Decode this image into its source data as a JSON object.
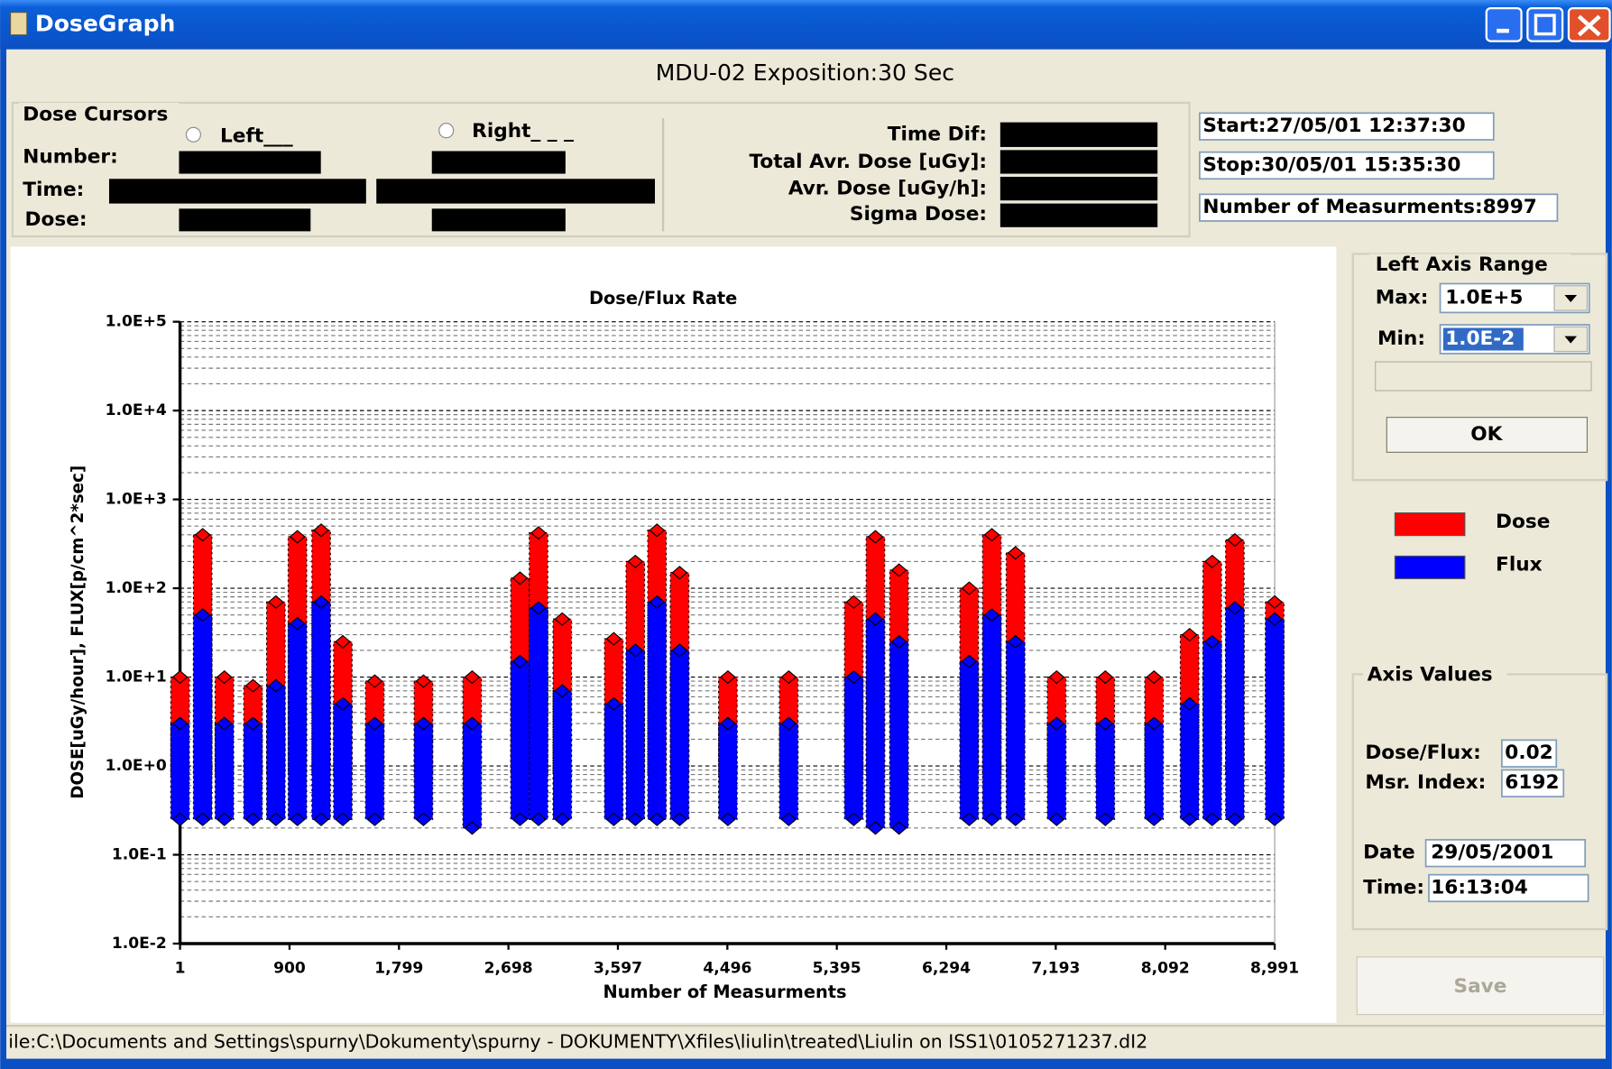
{
  "window": {
    "title": "DoseGraph"
  },
  "header": "MDU-02 Exposition:30 Sec",
  "dose_cursors": {
    "title": "Dose Cursors",
    "left": "Left___",
    "right": "Right_ _ _",
    "labels": [
      "Number:",
      "Time:",
      "Dose:"
    ]
  },
  "stats": {
    "labels": [
      "Time Dif:",
      "Total Avr. Dose [uGy]:",
      "Avr. Dose [uGy/h]:",
      "Sigma Dose:"
    ]
  },
  "info": [
    "Start:27/05/01 12:37:30",
    "Stop:30/05/01 15:35:30",
    "Number of Measurments:8997"
  ],
  "axis_range": {
    "title": "Left Axis Range",
    "max_label": "Max:",
    "max": "1.0E+5",
    "min_label": "Min:",
    "min": "1.0E-2",
    "ok": "OK"
  },
  "axis_values": {
    "title": "Axis Values",
    "fields": [
      {
        "label": "Dose/Flux:",
        "value": "0.02"
      },
      {
        "label": "Msr. Index:",
        "value": "6192"
      },
      {
        "label": "Date",
        "value": "29/05/2001"
      },
      {
        "label": "Time:",
        "value": "16:13:04"
      }
    ]
  },
  "save": "Save",
  "status": "ile:C:\\Documents and Settings\\spurny\\Dokumenty\\spurny - DOKUMENTY\\Xfiles\\liulin\\treated\\Liulin on ISS1\\0105271237.dI2",
  "chart_data": {
    "type": "scatter",
    "title": "Dose/Flux Rate",
    "x_label": "Number of Measurments",
    "y_label": "DOSE[uGy/hour], FLUX[p/cm^2*sec]",
    "x": [
      1,
      187,
      365,
      600,
      788,
      965,
      1160,
      1338,
      1600,
      2000,
      2400,
      2793,
      2945,
      3140,
      3563,
      3740,
      3918,
      4104,
      4500,
      5000,
      5534,
      5712,
      5906,
      6482,
      6668,
      6862,
      7200,
      7600,
      8000,
      8292,
      8478,
      8664,
      8991
    ],
    "xlim": [
      1,
      8991
    ],
    "xticks": [
      1,
      900,
      {
        "value": 1799,
        "label": "1,799"
      },
      {
        "value": 2698,
        "label": "2,698"
      },
      {
        "value": 3597,
        "label": "3,597"
      },
      {
        "value": 4496,
        "label": "4,496"
      },
      {
        "value": 5395,
        "label": "5,395"
      },
      {
        "value": 6294,
        "label": "6,294"
      },
      {
        "value": 7193,
        "label": "7,193"
      },
      {
        "value": 8092,
        "label": "8,092"
      },
      {
        "value": 8991,
        "label": "8,991"
      }
    ],
    "ylim": [
      0.01,
      100000
    ],
    "y_scale": "log",
    "yticks": [
      {
        "value": 0.01,
        "label": "1.0E-2"
      },
      {
        "value": 0.1,
        "label": "1.0E-1"
      },
      {
        "value": 1,
        "label": "1.0E+0"
      },
      {
        "value": 10,
        "label": "1.0E+1"
      },
      {
        "value": 100,
        "label": "1.0E+2"
      },
      {
        "value": 1000,
        "label": "1.0E+3"
      },
      {
        "value": 10000,
        "label": "1.0E+4"
      },
      {
        "value": 100000,
        "label": "1.0E+5"
      }
    ],
    "grid": true,
    "minor_grid": true,
    "series": [
      {
        "name": "Dose",
        "color": "#ff0000",
        "values": [
          10,
          400,
          10,
          8,
          70,
          380,
          450,
          25,
          9,
          9,
          10,
          130,
          420,
          45,
          27,
          200,
          450,
          150,
          10,
          10,
          70,
          380,
          160,
          100,
          400,
          250,
          10,
          10,
          10,
          30,
          200,
          350,
          70
        ],
        "lows": [
          0.8,
          0.8,
          0.8,
          0.8,
          0.8,
          0.8,
          0.8,
          0.8,
          0.8,
          0.8,
          0.8,
          0.8,
          0.8,
          0.8,
          0.8,
          0.8,
          0.8,
          0.8,
          0.8,
          0.8,
          0.8,
          0.8,
          0.8,
          0.8,
          0.8,
          0.8,
          0.8,
          0.8,
          0.8,
          0.8,
          0.8,
          0.8,
          0.8
        ]
      },
      {
        "name": "Flux",
        "color": "#0000ff",
        "values": [
          3,
          50,
          3,
          3,
          8,
          40,
          70,
          5,
          3,
          3,
          3,
          15,
          60,
          7,
          5,
          20,
          70,
          20,
          3,
          3,
          10,
          45,
          25,
          15,
          50,
          25,
          3,
          3,
          3,
          5,
          25,
          60,
          45
        ],
        "lows": [
          0.25,
          0.25,
          0.25,
          0.25,
          0.25,
          0.25,
          0.25,
          0.25,
          0.25,
          0.25,
          0.2,
          0.25,
          0.25,
          0.25,
          0.25,
          0.25,
          0.25,
          0.25,
          0.25,
          0.25,
          0.25,
          0.2,
          0.2,
          0.25,
          0.25,
          0.25,
          0.25,
          0.25,
          0.25,
          0.25,
          0.25,
          0.25,
          0.25
        ]
      }
    ]
  }
}
